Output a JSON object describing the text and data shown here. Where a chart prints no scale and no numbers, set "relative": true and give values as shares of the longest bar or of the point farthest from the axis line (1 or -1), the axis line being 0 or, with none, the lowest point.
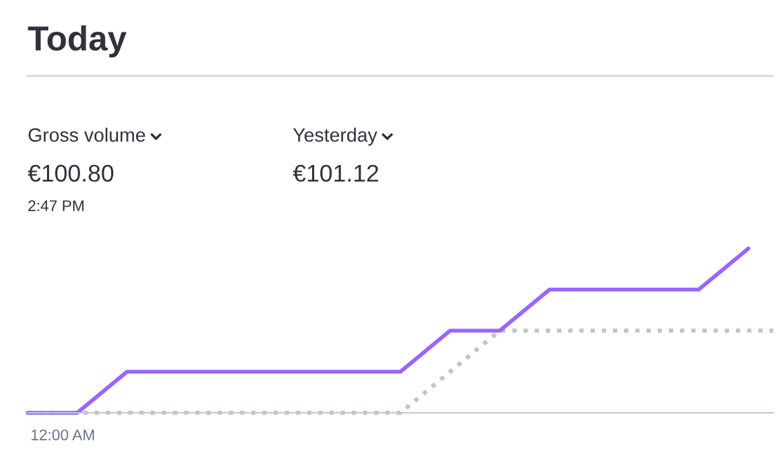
{
  "chart_data": {
    "type": "line",
    "title": "Today",
    "relative": true,
    "annotations": [
      "Gross volume",
      "€100.80",
      "2:47 PM",
      "Yesterday",
      "€101.12",
      "12:00 AM"
    ],
    "categories": [
      null,
      null,
      null,
      null,
      null,
      null,
      null,
      null,
      null,
      null,
      null,
      null,
      null,
      null,
      null,
      null,
      null,
      null,
      null,
      null,
      null,
      null,
      null,
      null,
      null,
      null,
      null,
      null,
      null,
      null,
      null
    ],
    "marker": "none",
    "series": [
      {
        "color": "#c0c4cc",
        "line_style": "dotted",
        "values": [
          0,
          0,
          0,
          0,
          0,
          0,
          0,
          0,
          0,
          0,
          0,
          0,
          0,
          0,
          0,
          0,
          0.125,
          0.25,
          0.375,
          0.5,
          0.5,
          0.5,
          0.5,
          0.5,
          0.5,
          0.5,
          0.5,
          0.5,
          0.5,
          0.5,
          0.5
        ]
      },
      {
        "color": "#9966ff",
        "line_style": "solid",
        "values": [
          0,
          0,
          0,
          0.125,
          0.25,
          0.25,
          0.25,
          0.25,
          0.25,
          0.25,
          0.25,
          0.25,
          0.25,
          0.25,
          0.25,
          0.25,
          0.375,
          0.5,
          0.5,
          0.5,
          0.625,
          0.75,
          0.75,
          0.75,
          0.75,
          0.75,
          0.75,
          0.75,
          0.875,
          1,
          null
        ]
      }
    ]
  }
}
